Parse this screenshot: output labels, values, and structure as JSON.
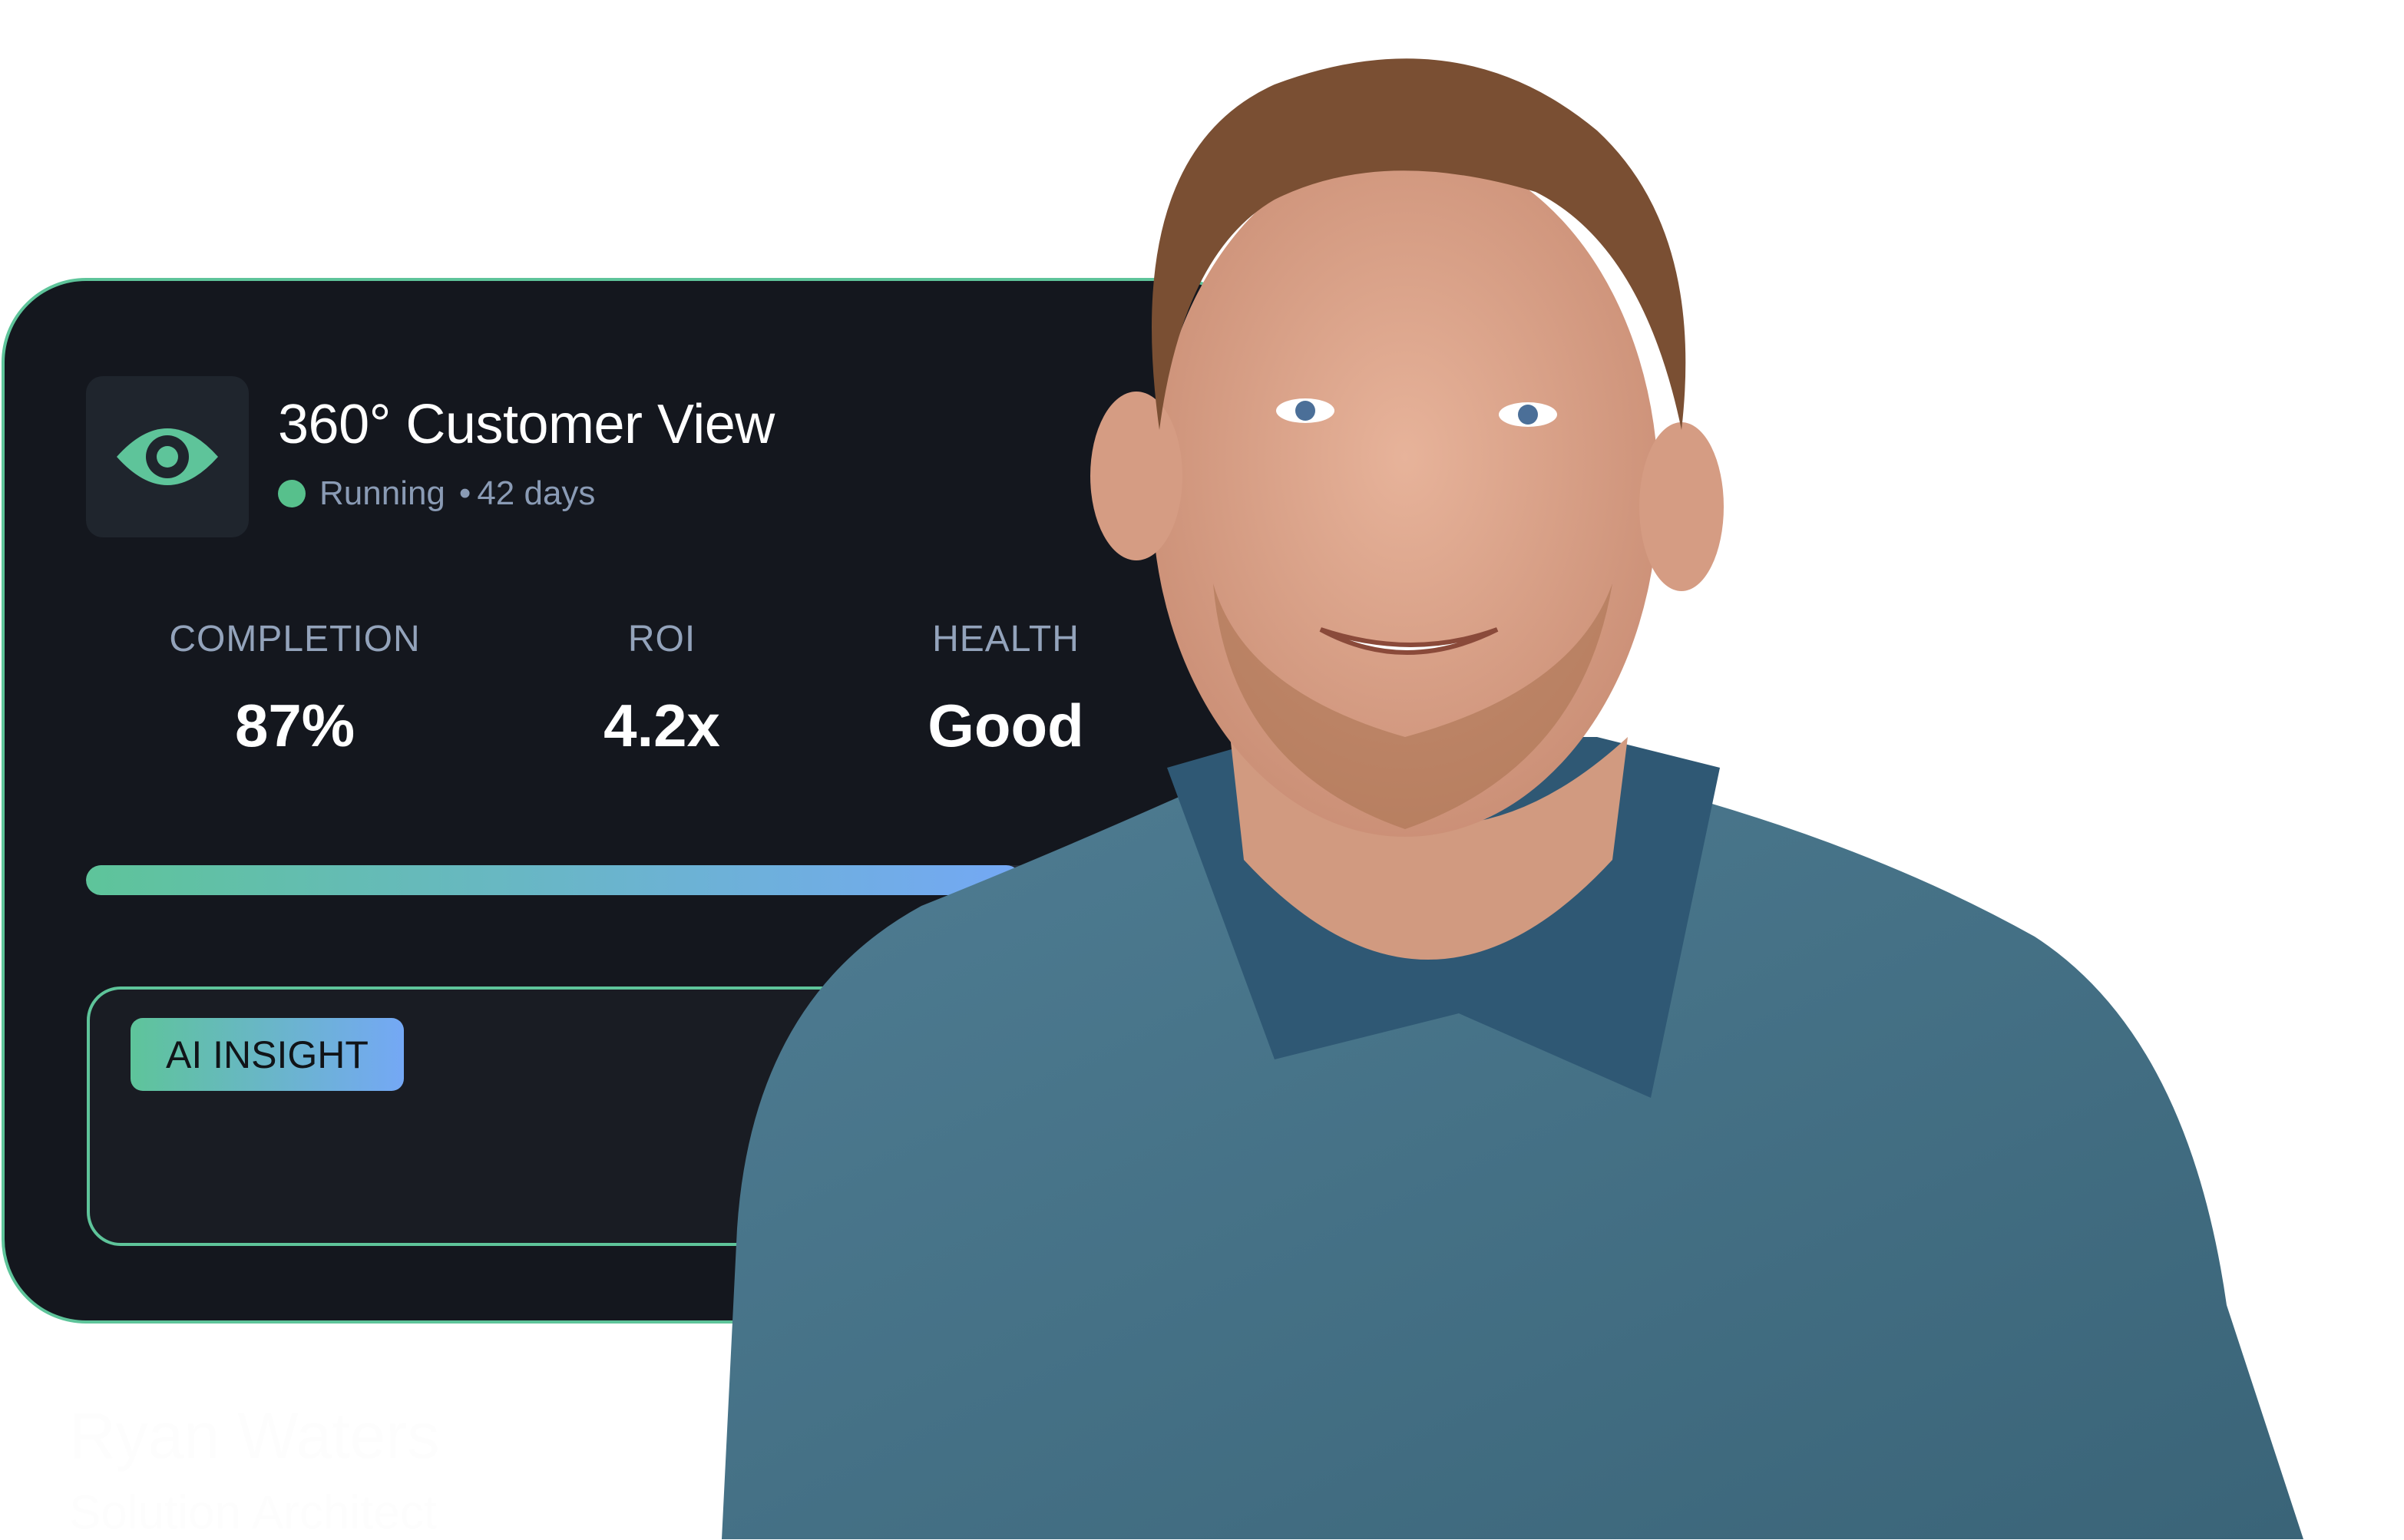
{
  "card": {
    "title": "360° Customer View",
    "icon": "eye-icon",
    "status": "Running",
    "status_separator": "•",
    "duration": "42 days",
    "status_color": "#57c08c",
    "accent": "#5ec49a",
    "accent_secondary": "#74a8f5",
    "background": "#14171e"
  },
  "stats": [
    {
      "label": "COMPLETION",
      "value": "87%"
    },
    {
      "label": "ROI",
      "value": "4.2x"
    },
    {
      "label": "HEALTH",
      "value": "Good"
    }
  ],
  "progress": {
    "percent": 87
  },
  "insight": {
    "badge": "AI INSIGHT"
  },
  "person": {
    "name": "Ryan Waters",
    "role": "Solution Architect"
  }
}
